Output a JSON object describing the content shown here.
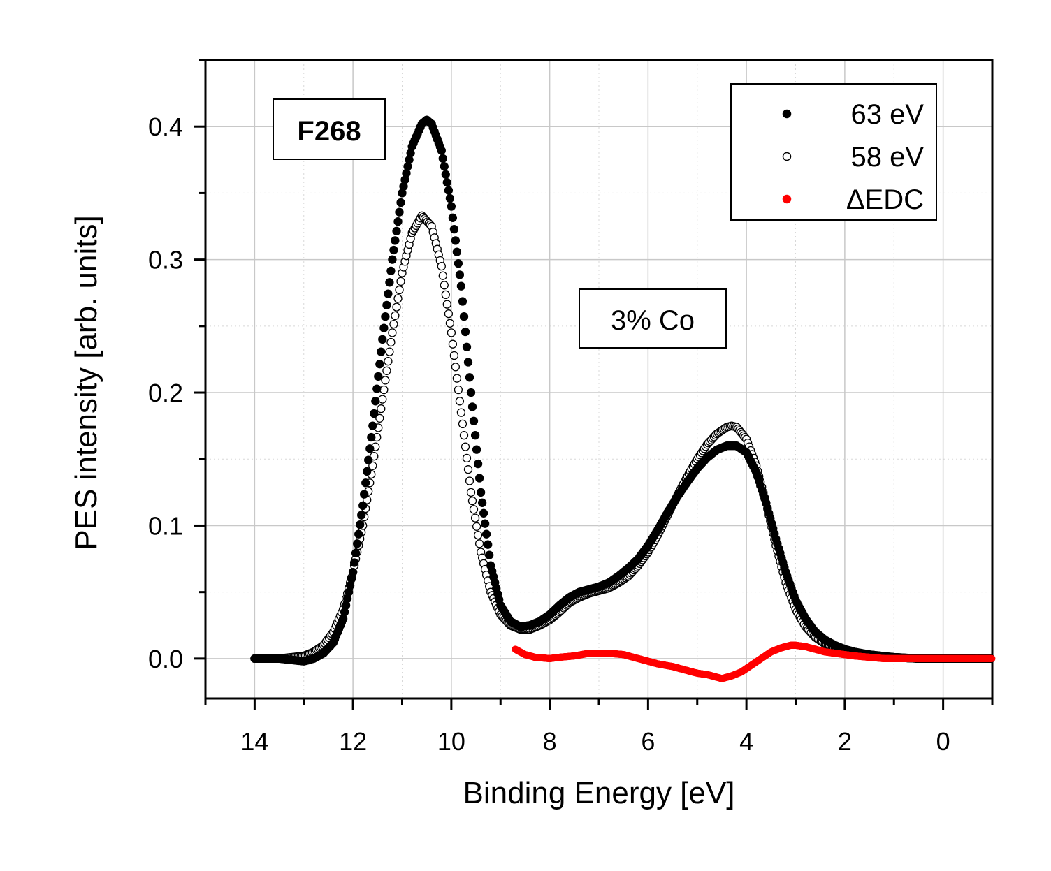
{
  "chart_data": {
    "type": "scatter",
    "title": "",
    "xlabel": "Binding Energy [eV]",
    "ylabel": "PES intensity [arb. units]",
    "xlim": [
      15,
      -1
    ],
    "ylim": [
      -0.03,
      0.45
    ],
    "x_ticks": [
      "14",
      "12",
      "10",
      "8",
      "6",
      "4",
      "2",
      "0"
    ],
    "y_ticks": [
      "0.0",
      "0.1",
      "0.2",
      "0.3",
      "0.4"
    ],
    "grid": true,
    "legend_position": "top-right",
    "annotations": [
      "F268",
      "3% Co"
    ],
    "series": [
      {
        "name": "63 eV",
        "marker": "filled-circle",
        "color": "#000000",
        "x": [
          14.0,
          13.5,
          13.0,
          12.8,
          12.6,
          12.4,
          12.2,
          12.0,
          11.8,
          11.6,
          11.4,
          11.2,
          11.0,
          10.8,
          10.6,
          10.5,
          10.4,
          10.2,
          10.0,
          9.8,
          9.6,
          9.4,
          9.2,
          9.0,
          8.8,
          8.6,
          8.4,
          8.2,
          8.0,
          7.8,
          7.6,
          7.4,
          7.2,
          7.0,
          6.8,
          6.6,
          6.4,
          6.2,
          6.0,
          5.8,
          5.6,
          5.4,
          5.2,
          5.0,
          4.8,
          4.6,
          4.4,
          4.2,
          4.0,
          3.8,
          3.6,
          3.4,
          3.2,
          3.0,
          2.8,
          2.6,
          2.4,
          2.2,
          2.0,
          1.8,
          1.5,
          1.0,
          0.5,
          0.0,
          -1.0
        ],
        "y": [
          0.0,
          0.0,
          -0.002,
          0.0,
          0.004,
          0.012,
          0.03,
          0.065,
          0.115,
          0.175,
          0.24,
          0.3,
          0.35,
          0.385,
          0.402,
          0.405,
          0.402,
          0.382,
          0.34,
          0.28,
          0.2,
          0.125,
          0.07,
          0.04,
          0.028,
          0.024,
          0.025,
          0.028,
          0.033,
          0.04,
          0.046,
          0.05,
          0.052,
          0.054,
          0.057,
          0.062,
          0.068,
          0.075,
          0.085,
          0.097,
          0.11,
          0.122,
          0.133,
          0.143,
          0.151,
          0.157,
          0.16,
          0.16,
          0.155,
          0.14,
          0.117,
          0.09,
          0.065,
          0.044,
          0.03,
          0.02,
          0.014,
          0.01,
          0.007,
          0.005,
          0.003,
          0.001,
          0.0,
          0.0,
          0.0
        ]
      },
      {
        "name": "58 eV",
        "marker": "open-circle",
        "color": "#000000",
        "x": [
          14.0,
          13.5,
          13.0,
          12.8,
          12.6,
          12.4,
          12.2,
          12.0,
          11.8,
          11.6,
          11.4,
          11.2,
          11.0,
          10.8,
          10.6,
          10.4,
          10.2,
          10.0,
          9.8,
          9.6,
          9.4,
          9.2,
          9.0,
          8.8,
          8.6,
          8.4,
          8.2,
          8.0,
          7.8,
          7.6,
          7.4,
          7.2,
          7.0,
          6.8,
          6.6,
          6.4,
          6.2,
          6.0,
          5.8,
          5.6,
          5.4,
          5.2,
          5.0,
          4.8,
          4.6,
          4.4,
          4.3,
          4.2,
          4.0,
          3.8,
          3.6,
          3.4,
          3.2,
          3.0,
          2.8,
          2.6,
          2.4,
          2.2,
          2.0,
          1.8,
          1.5,
          1.0,
          0.5,
          0.0,
          -1.0
        ],
        "y": [
          0.0,
          0.0,
          0.002,
          0.005,
          0.01,
          0.02,
          0.037,
          0.065,
          0.1,
          0.145,
          0.195,
          0.245,
          0.29,
          0.32,
          0.333,
          0.325,
          0.295,
          0.245,
          0.185,
          0.125,
          0.08,
          0.05,
          0.033,
          0.025,
          0.022,
          0.022,
          0.025,
          0.029,
          0.035,
          0.042,
          0.046,
          0.049,
          0.051,
          0.053,
          0.057,
          0.062,
          0.07,
          0.08,
          0.093,
          0.108,
          0.123,
          0.137,
          0.15,
          0.161,
          0.169,
          0.174,
          0.175,
          0.174,
          0.165,
          0.145,
          0.117,
          0.085,
          0.057,
          0.037,
          0.024,
          0.016,
          0.011,
          0.008,
          0.006,
          0.004,
          0.002,
          0.001,
          0.0,
          0.0,
          0.0
        ]
      },
      {
        "name": "ΔEDC",
        "marker": "filled-circle",
        "color": "#ff0000",
        "x": [
          8.7,
          8.5,
          8.3,
          8.0,
          7.8,
          7.5,
          7.2,
          7.0,
          6.8,
          6.5,
          6.2,
          6.0,
          5.8,
          5.5,
          5.2,
          5.0,
          4.8,
          4.6,
          4.5,
          4.3,
          4.1,
          3.9,
          3.7,
          3.5,
          3.3,
          3.1,
          3.0,
          2.8,
          2.6,
          2.4,
          2.2,
          2.0,
          1.8,
          1.5,
          1.2,
          1.0,
          0.5,
          0.0,
          -1.0
        ],
        "y": [
          0.007,
          0.003,
          0.001,
          0.0,
          0.001,
          0.002,
          0.004,
          0.004,
          0.004,
          0.003,
          0.0,
          -0.002,
          -0.004,
          -0.006,
          -0.009,
          -0.011,
          -0.012,
          -0.014,
          -0.015,
          -0.013,
          -0.01,
          -0.005,
          0.0,
          0.005,
          0.008,
          0.01,
          0.01,
          0.009,
          0.007,
          0.005,
          0.004,
          0.003,
          0.002,
          0.001,
          0.0,
          0.0,
          0.0,
          0.0,
          0.0
        ]
      }
    ]
  }
}
